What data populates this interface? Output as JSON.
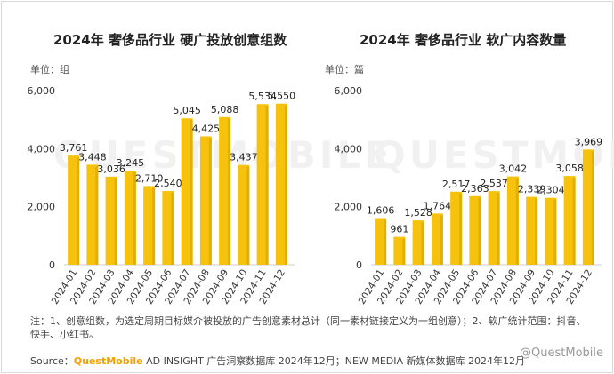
{
  "colors": {
    "bar": "#f7c20d",
    "bar_side": "#d9a800",
    "axis": "#cccccc",
    "text": "#333333"
  },
  "background_logo": "QUESTMOBILE",
  "chart_data": [
    {
      "type": "bar",
      "title": "2024年 奢侈品行业 硬广投放创意组数",
      "unit_label": "单位：组",
      "categories": [
        "2024-01",
        "2024-02",
        "2024-03",
        "2024-04",
        "2024-05",
        "2024-06",
        "2024-07",
        "2024-08",
        "2024-09",
        "2024-10",
        "2024-11",
        "2024-12"
      ],
      "values": [
        3761,
        3448,
        3036,
        3245,
        2710,
        2540,
        5045,
        4425,
        5088,
        3437,
        5534,
        5550
      ],
      "yticks": [
        0,
        2000,
        4000,
        6000
      ],
      "ytick_labels": [
        "0",
        "2,000",
        "4,000",
        "6,000"
      ],
      "value_labels": [
        "3,761",
        "3,448",
        "3,036",
        "3,245",
        "2,710",
        "2,540",
        "5,045",
        "4,425",
        "5,088",
        "3,437",
        "5,534",
        "5,550"
      ],
      "ylim": [
        0,
        6000
      ],
      "grid": false
    },
    {
      "type": "bar",
      "title": "2024年 奢侈品行业 软广内容数量",
      "unit_label": "单位：篇",
      "categories": [
        "2024-01",
        "2024-02",
        "2024-03",
        "2024-04",
        "2024-05",
        "2024-06",
        "2024-07",
        "2024-08",
        "2024-09",
        "2024-10",
        "2024-11",
        "2024-12"
      ],
      "values": [
        1606,
        961,
        1528,
        1764,
        2517,
        2363,
        2537,
        3042,
        2339,
        2304,
        3058,
        3969
      ],
      "yticks": [
        0,
        2000,
        4000,
        6000
      ],
      "ytick_labels": [
        "0",
        "2,000",
        "4,000",
        "6,000"
      ],
      "value_labels": [
        "1,606",
        "961",
        "1,528",
        "1,764",
        "2,517",
        "2,363",
        "2,537",
        "3,042",
        "2,339",
        "2,304",
        "3,058",
        "3,969"
      ],
      "ylim": [
        0,
        6000
      ],
      "grid": false
    }
  ],
  "footer": {
    "note": "注：1、创意组数，为选定周期目标媒介被投放的广告创意素材总计（同一素材链接定义为一组创意）；2、软广统计范围：抖音、快手、小红书。",
    "source_prefix": "Source：",
    "source_brand": "QuestMobile",
    "source_rest": " AD INSIGHT 广告洞察数据库 2024年12月；NEW MEDIA 新媒体数据库 2024年12月",
    "watermark": "@QuestMobile"
  }
}
